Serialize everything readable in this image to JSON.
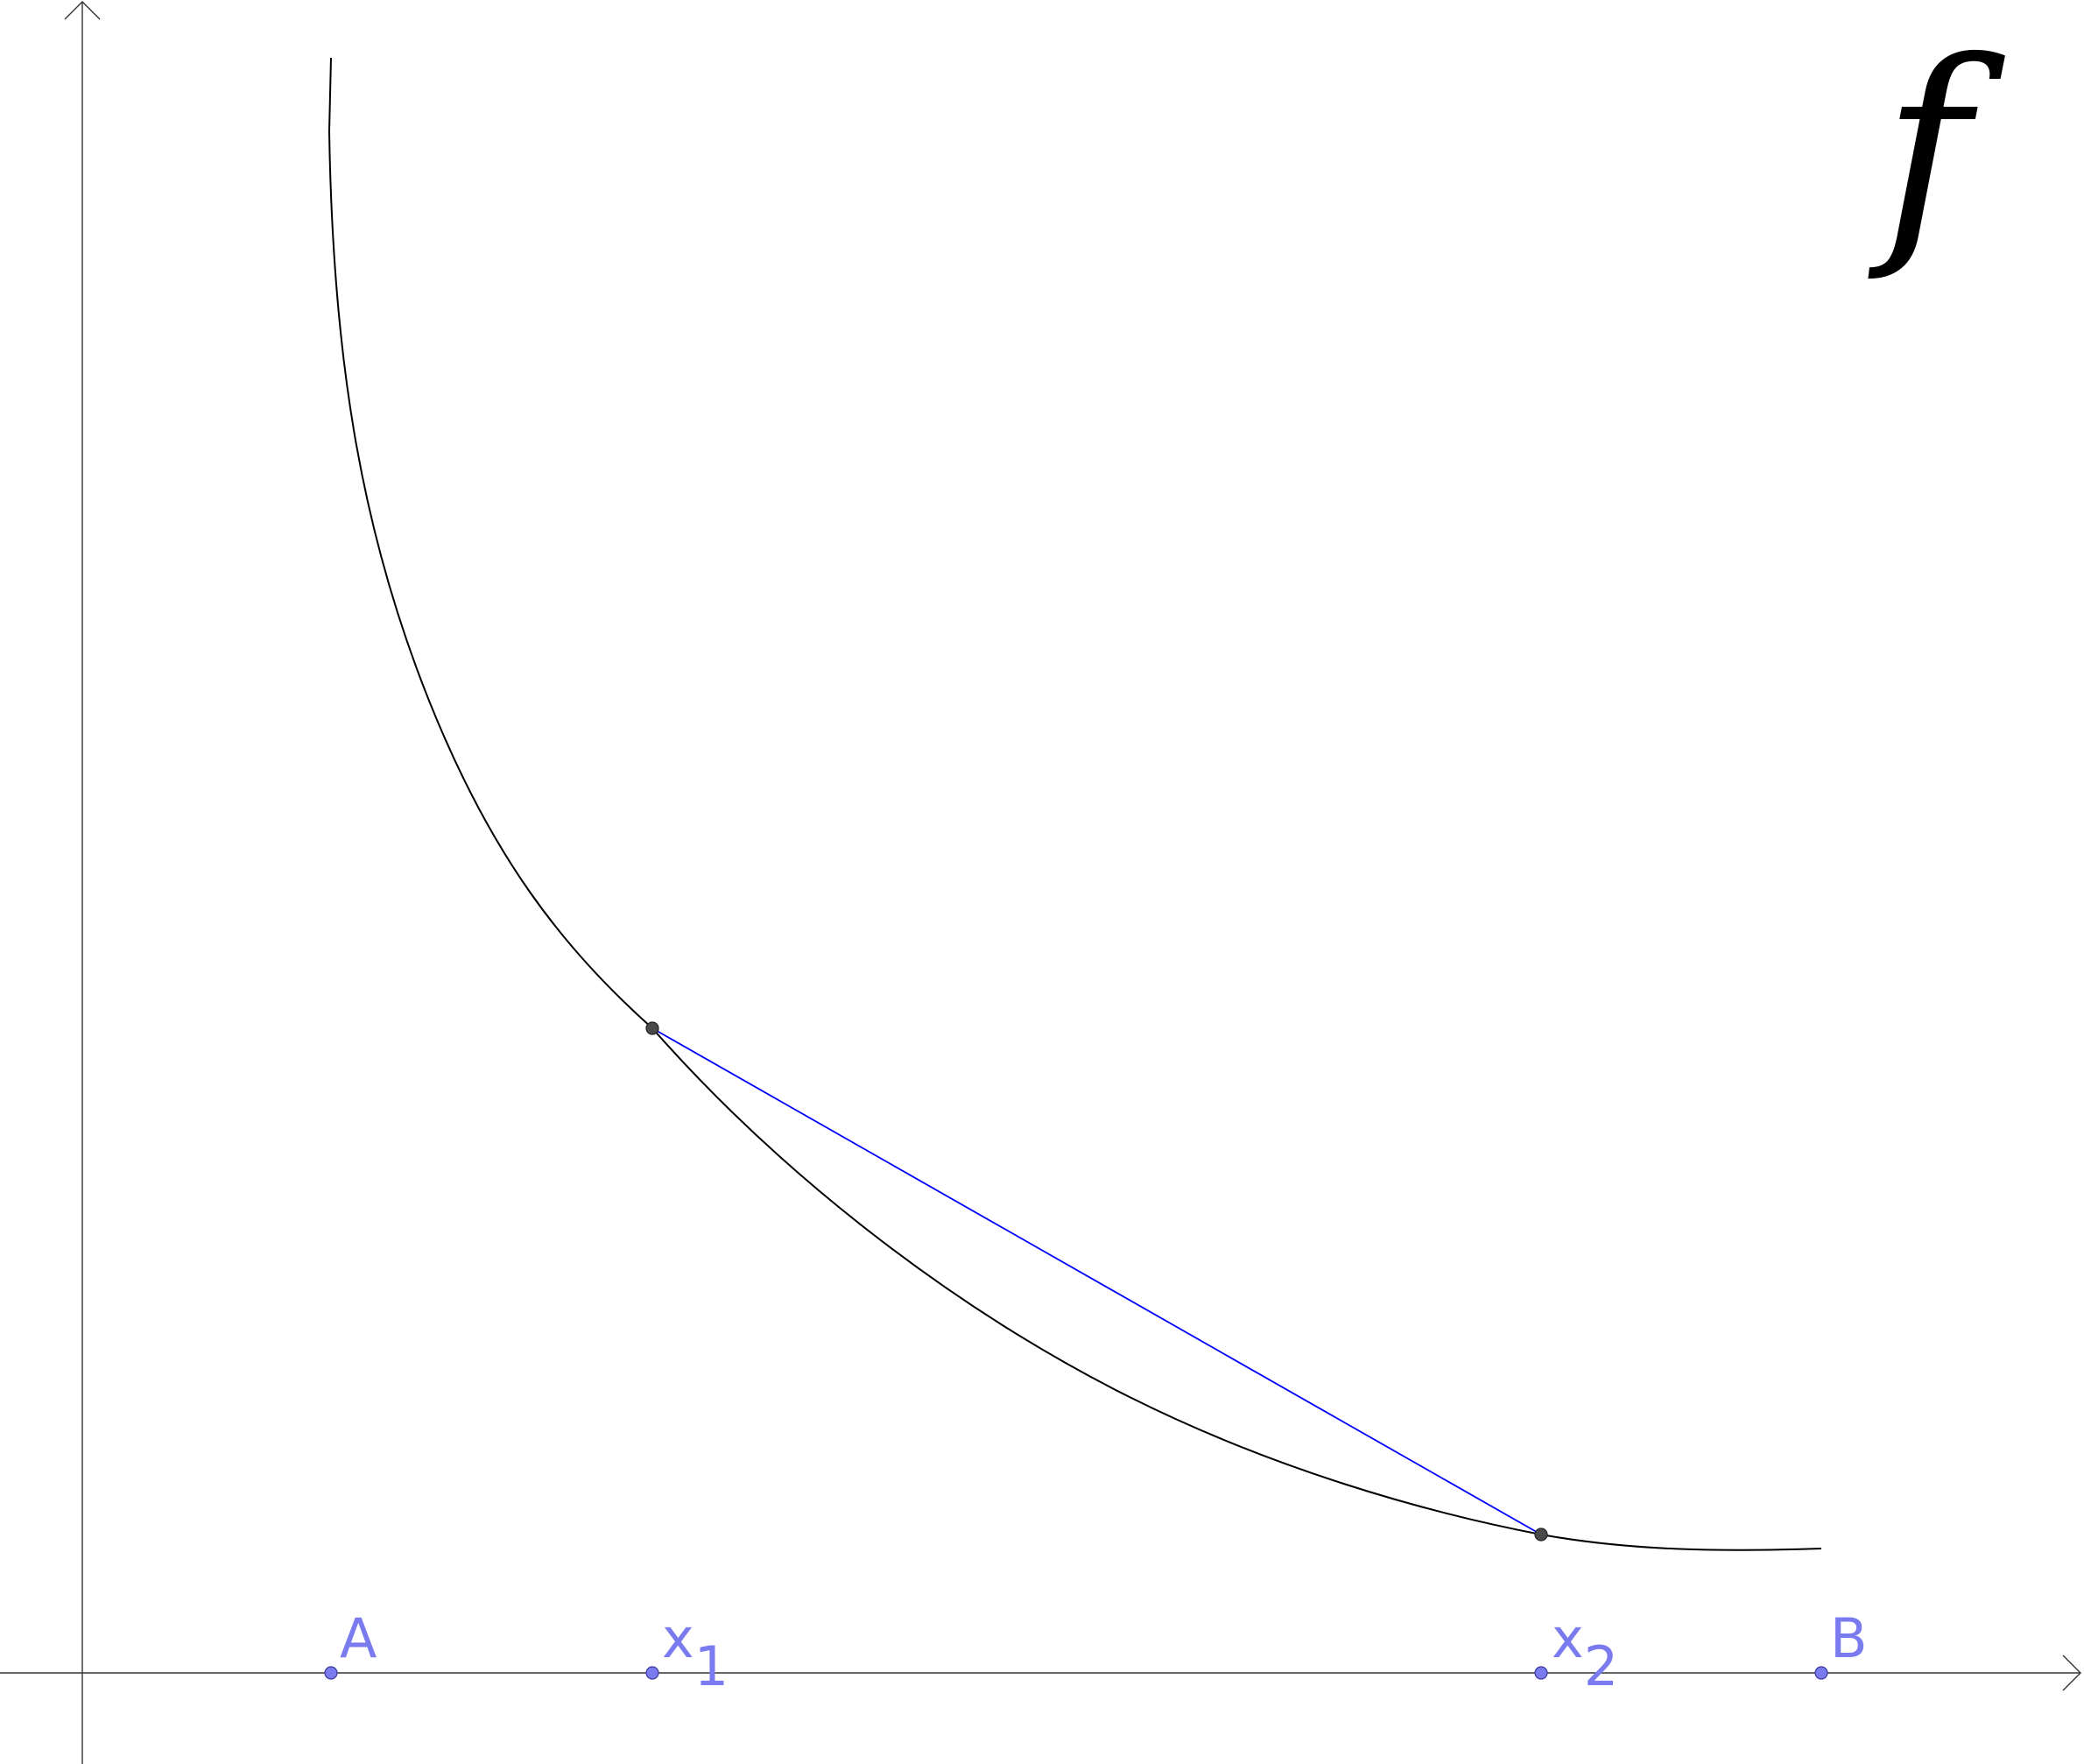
{
  "diagram": {
    "function_label": "f",
    "points": [
      {
        "id": "A",
        "label": "A",
        "sub": ""
      },
      {
        "id": "x1",
        "label": "x",
        "sub": "1"
      },
      {
        "id": "x2",
        "label": "x",
        "sub": "2"
      },
      {
        "id": "B",
        "label": "B",
        "sub": ""
      }
    ],
    "colors": {
      "axis": "#333333",
      "curve": "#000000",
      "chord": "#0000ff",
      "point_labels": "#7b7bf0",
      "curve_points": "#4a4a4a"
    }
  }
}
